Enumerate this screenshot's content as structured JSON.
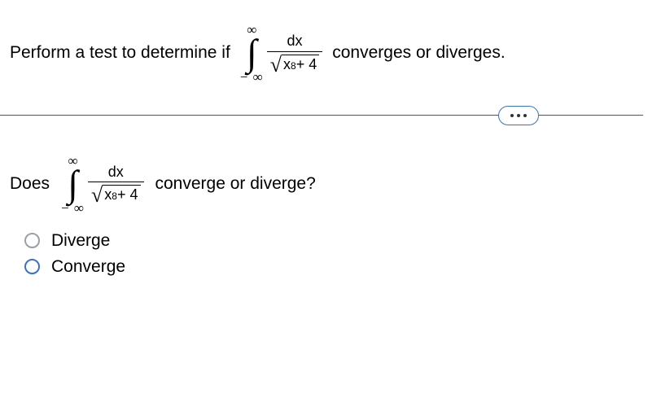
{
  "prompt": {
    "before_text": "Perform a test to determine if",
    "after_text": "converges or diverges."
  },
  "integral": {
    "upper_bound": "∞",
    "lower_bound": "− ∞",
    "numerator": "dx",
    "radicand_base": "x",
    "radicand_exp": "8",
    "radicand_tail": " + 4"
  },
  "divider": {
    "line_color": "#b81b63",
    "pill_border_color": "#3a74b8"
  },
  "question": {
    "before_text": "Does",
    "after_text": "converge or diverge?"
  },
  "options": {
    "a_label": "Diverge",
    "b_label": "Converge"
  },
  "colors": {
    "radio_gray": "#9aa0a6",
    "radio_blue": "#3a74b8"
  }
}
